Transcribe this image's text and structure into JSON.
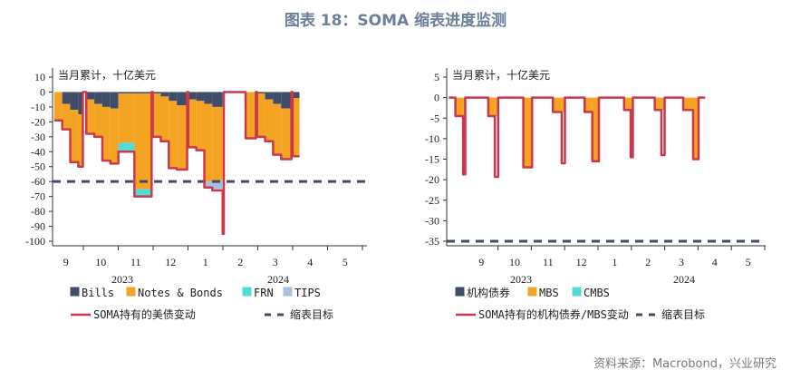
{
  "title": "图表 18：SOMA 缩表进度监测",
  "source": "资料来源：Macrobond，兴业研究",
  "colors": {
    "bills": "#3f4d68",
    "notes": "#f5a322",
    "frn": "#52dcd6",
    "tips": "#a7c1dd",
    "soma": "#c9384c",
    "target": "#3f4d68"
  },
  "chart_data": [
    {
      "type": "bar",
      "unit_label": "当月累计，十亿美元",
      "ylim": [
        -100,
        10
      ],
      "ystep": 10,
      "x_months": [
        "9",
        "10",
        "11",
        "12",
        "1",
        "2",
        "3",
        "4",
        "5"
      ],
      "years": [
        "2023",
        "2024"
      ],
      "target": -60,
      "legend": {
        "bars": [
          "Bills",
          "Notes & Bonds",
          "FRN",
          "TIPS"
        ],
        "line": "SOMA持有的美债变动",
        "target": "缩表目标"
      },
      "series_keys": [
        "bills",
        "notes",
        "frn",
        "tips"
      ],
      "points": [
        {
          "date": "2023-09-06",
          "bills": 0,
          "notes": -19,
          "frn": 0,
          "tips": 0,
          "total": -19
        },
        {
          "date": "2023-09-13",
          "bills": -8,
          "notes": -17,
          "frn": 0,
          "tips": 0,
          "total": -25
        },
        {
          "date": "2023-09-20",
          "bills": -12,
          "notes": -35,
          "frn": 0,
          "tips": 0,
          "total": -47
        },
        {
          "date": "2023-09-27",
          "bills": -15,
          "notes": -35,
          "frn": 0,
          "tips": 0,
          "total": -50
        },
        {
          "date": "2023-10-01",
          "bills": 0,
          "notes": 0,
          "frn": 0,
          "tips": 0,
          "total": 0
        },
        {
          "date": "2023-10-04",
          "bills": -5,
          "notes": -23,
          "frn": 0,
          "tips": 0,
          "total": -28
        },
        {
          "date": "2023-10-11",
          "bills": -8,
          "notes": -22,
          "frn": 0,
          "tips": 0,
          "total": -30
        },
        {
          "date": "2023-10-18",
          "bills": -10,
          "notes": -36,
          "frn": 0,
          "tips": 0,
          "total": -46
        },
        {
          "date": "2023-10-25",
          "bills": -11,
          "notes": -37,
          "frn": 0,
          "tips": 0,
          "total": -48
        },
        {
          "date": "2023-11-01",
          "bills": -1,
          "notes": -33,
          "frn": -6,
          "tips": 0,
          "total": -40
        },
        {
          "date": "2023-11-15",
          "bills": -1,
          "notes": -64,
          "frn": -5,
          "tips": 0,
          "total": -70
        },
        {
          "date": "2023-11-30",
          "bills": 0,
          "notes": 0,
          "frn": 0,
          "tips": 0,
          "total": 0
        },
        {
          "date": "2023-12-01",
          "bills": -1,
          "notes": -29,
          "frn": 0,
          "tips": 0,
          "total": -30
        },
        {
          "date": "2023-12-08",
          "bills": -3,
          "notes": -30,
          "frn": 0,
          "tips": 0,
          "total": -33
        },
        {
          "date": "2023-12-15",
          "bills": -6,
          "notes": -45,
          "frn": 0,
          "tips": 0,
          "total": -51
        },
        {
          "date": "2023-12-22",
          "bills": -9,
          "notes": -43,
          "frn": 0,
          "tips": 0,
          "total": -52
        },
        {
          "date": "2023-12-31",
          "bills": 0,
          "notes": 0,
          "frn": 0,
          "tips": 0,
          "total": 0
        },
        {
          "date": "2024-01-01",
          "bills": -5,
          "notes": -32,
          "frn": 0,
          "tips": 0,
          "total": -37
        },
        {
          "date": "2024-01-08",
          "bills": -6,
          "notes": -33,
          "frn": 0,
          "tips": 0,
          "total": -39
        },
        {
          "date": "2024-01-15",
          "bills": -8,
          "notes": -52,
          "frn": 0,
          "tips": -4,
          "total": -64
        },
        {
          "date": "2024-01-22",
          "bills": -10,
          "notes": -49,
          "frn": 0,
          "tips": -6,
          "total": -66
        },
        {
          "date": "2024-01-31",
          "bills": 0,
          "notes": 0,
          "frn": 0,
          "tips": 0,
          "total": -95
        },
        {
          "date": "2024-02-01",
          "bills": 0,
          "notes": 0,
          "frn": 0,
          "tips": 0,
          "total": 0
        },
        {
          "date": "2024-02-20",
          "bills": 0,
          "notes": -31,
          "frn": 0,
          "tips": 0,
          "total": -31
        },
        {
          "date": "2024-02-29",
          "bills": 0,
          "notes": 0,
          "frn": 0,
          "tips": 0,
          "total": 0
        },
        {
          "date": "2024-03-01",
          "bills": -1,
          "notes": -29,
          "frn": 0,
          "tips": 0,
          "total": -30
        },
        {
          "date": "2024-03-08",
          "bills": -5,
          "notes": -28,
          "frn": 0,
          "tips": 0,
          "total": -33
        },
        {
          "date": "2024-03-15",
          "bills": -8,
          "notes": -34,
          "frn": 0,
          "tips": 0,
          "total": -42
        },
        {
          "date": "2024-03-22",
          "bills": -11,
          "notes": -34,
          "frn": 0,
          "tips": 0,
          "total": -45
        },
        {
          "date": "2024-03-31",
          "bills": 0,
          "notes": 0,
          "frn": 0,
          "tips": 0,
          "total": 0
        },
        {
          "date": "2024-04-01",
          "bills": -4,
          "notes": -39,
          "frn": 0,
          "tips": 0,
          "total": -43
        },
        {
          "date": "2024-04-07",
          "end": true
        }
      ]
    },
    {
      "type": "bar",
      "unit_label": "当月累计，十亿美元",
      "ylim": [
        -35,
        5
      ],
      "ystep": 5,
      "x_months": [
        "9",
        "10",
        "11",
        "12",
        "1",
        "2",
        "3",
        "4",
        "5"
      ],
      "years": [
        "2023",
        "2024"
      ],
      "target": -35,
      "legend": {
        "bars": [
          "机构债券",
          "MBS",
          "CMBS"
        ],
        "line": "SOMA持有的机构债券/MBS变动",
        "target": "缩表目标"
      },
      "series_keys": [
        "agency",
        "mbs",
        "cmbs"
      ],
      "points": [
        {
          "date": "2023-08-17",
          "agency": 0,
          "mbs": 0,
          "cmbs": 0,
          "total": 0
        },
        {
          "date": "2023-08-23",
          "agency": 0,
          "mbs": -4.5,
          "cmbs": 0,
          "total": -4.5
        },
        {
          "date": "2023-08-30",
          "agency": 0,
          "mbs": -4.5,
          "cmbs": 0,
          "total": -18.7
        },
        {
          "date": "2023-09-01",
          "agency": 0,
          "mbs": 0,
          "cmbs": 0,
          "total": 0
        },
        {
          "date": "2023-09-22",
          "agency": 0,
          "mbs": -4.5,
          "cmbs": 0,
          "total": -4.5
        },
        {
          "date": "2023-09-28",
          "agency": 0,
          "mbs": -4.5,
          "cmbs": 0,
          "total": -19.3
        },
        {
          "date": "2023-10-01",
          "agency": 0,
          "mbs": 0,
          "cmbs": 0,
          "total": 0
        },
        {
          "date": "2023-10-24",
          "agency": 0,
          "mbs": -17,
          "cmbs": 0,
          "total": -17
        },
        {
          "date": "2023-11-01",
          "agency": 0,
          "mbs": 0,
          "cmbs": 0,
          "total": 0
        },
        {
          "date": "2023-11-20",
          "agency": 0,
          "mbs": -3.5,
          "cmbs": 0,
          "total": -3.5
        },
        {
          "date": "2023-11-28",
          "agency": 0,
          "mbs": -3.5,
          "cmbs": 0,
          "total": -16
        },
        {
          "date": "2023-12-01",
          "agency": 0,
          "mbs": 0,
          "cmbs": 0,
          "total": 0
        },
        {
          "date": "2023-12-19",
          "agency": 0,
          "mbs": -3.5,
          "cmbs": 0,
          "total": -3.5
        },
        {
          "date": "2023-12-26",
          "agency": 0,
          "mbs": -15.5,
          "cmbs": 0,
          "total": -15.5
        },
        {
          "date": "2024-01-01",
          "agency": 0,
          "mbs": 0,
          "cmbs": 0,
          "total": 0
        },
        {
          "date": "2024-01-24",
          "agency": 0,
          "mbs": -3,
          "cmbs": 0,
          "total": -3
        },
        {
          "date": "2024-01-30",
          "agency": 0,
          "mbs": -3,
          "cmbs": 0,
          "total": -14.5
        },
        {
          "date": "2024-02-01",
          "agency": 0,
          "mbs": 0,
          "cmbs": 0,
          "total": 0
        },
        {
          "date": "2024-02-21",
          "agency": 0,
          "mbs": -3,
          "cmbs": 0,
          "total": -3
        },
        {
          "date": "2024-02-27",
          "agency": 0,
          "mbs": -3,
          "cmbs": 0,
          "total": -14
        },
        {
          "date": "2024-03-01",
          "agency": 0,
          "mbs": 0,
          "cmbs": 0,
          "total": 0
        },
        {
          "date": "2024-03-18",
          "agency": 0,
          "mbs": -3,
          "cmbs": 0,
          "total": -3
        },
        {
          "date": "2024-03-27",
          "agency": 0,
          "mbs": -15,
          "cmbs": 0,
          "total": -15
        },
        {
          "date": "2024-04-01",
          "agency": 0,
          "mbs": 0,
          "cmbs": 0,
          "total": 0
        },
        {
          "date": "2024-04-07",
          "end": true
        }
      ]
    }
  ]
}
